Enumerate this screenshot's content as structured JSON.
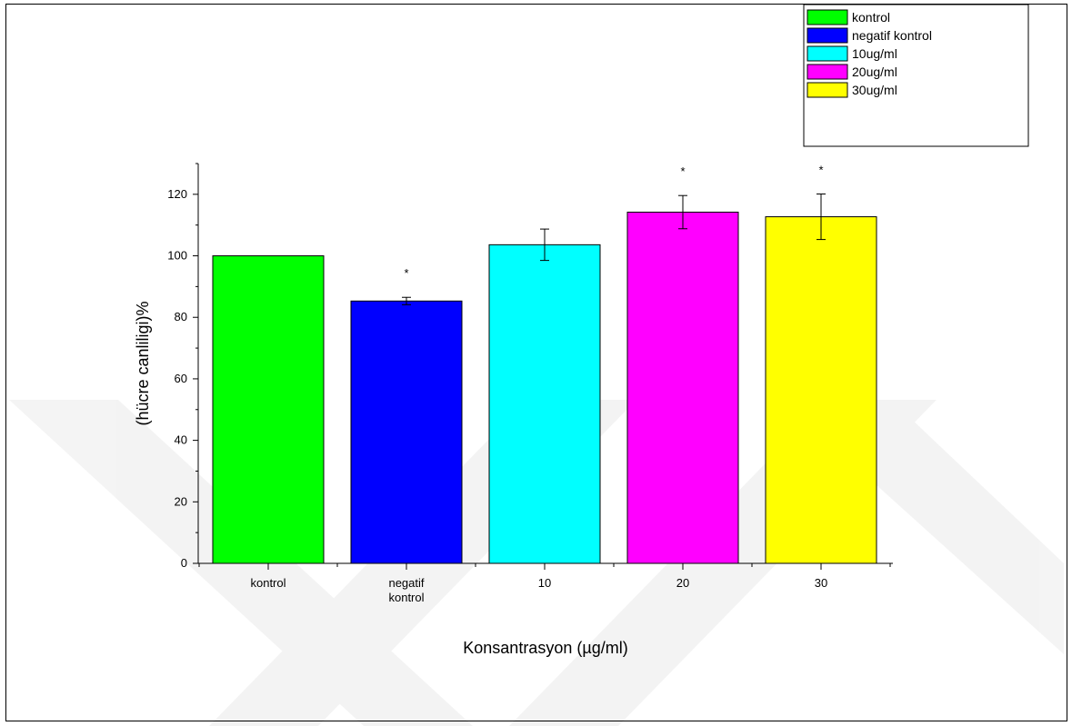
{
  "chart_data": {
    "type": "bar",
    "categories": [
      "kontrol",
      "negatif kontrol",
      "10",
      "20",
      "30"
    ],
    "category_label_lines": [
      [
        "kontrol"
      ],
      [
        "negatif",
        "kontrol"
      ],
      [
        "10"
      ],
      [
        "20"
      ],
      [
        "30"
      ]
    ],
    "values": [
      100,
      85.3,
      103.6,
      114.2,
      112.7
    ],
    "error": [
      0,
      1.2,
      5.1,
      5.4,
      7.4
    ],
    "significant": [
      false,
      true,
      false,
      true,
      true
    ],
    "significance_marker": "*",
    "colors": [
      "#00ff00",
      "#0000ff",
      "#00ffff",
      "#ff00ff",
      "#ffff00"
    ],
    "xlabel": "Konsantrasyon (µg/ml)",
    "ylabel": "(hücre canliligi)%",
    "ylim": [
      0,
      130
    ],
    "yticks": [
      0,
      20,
      40,
      60,
      80,
      100,
      120
    ],
    "grid": false,
    "legend": {
      "placement": "top-right",
      "entries": [
        {
          "label": "kontrol",
          "color": "#00ff00"
        },
        {
          "label": "negatif kontrol",
          "color": "#0000ff"
        },
        {
          "label": "10ug/ml",
          "color": "#00ffff"
        },
        {
          "label": "20ug/ml",
          "color": "#ff00ff"
        },
        {
          "label": "30ug/ml",
          "color": "#ffff00"
        }
      ]
    }
  }
}
